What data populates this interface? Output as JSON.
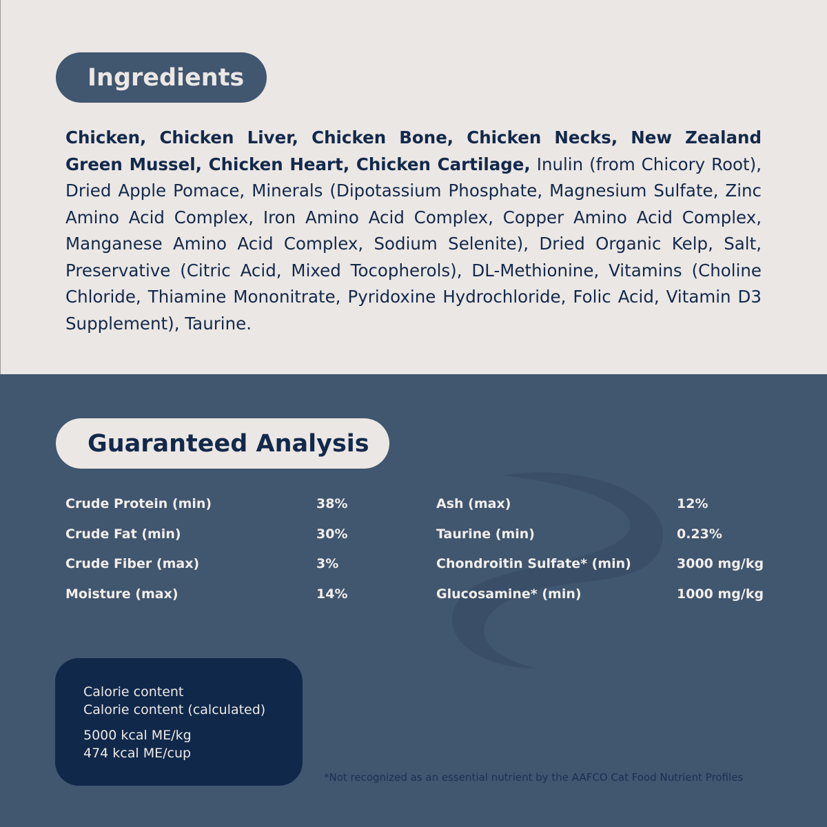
{
  "ingredients": {
    "title": "Ingredients",
    "bold_text": "Chicken, Chicken Liver, Chicken Bone, Chicken Necks, New Zealand Green Mussel, Chicken Heart, Chicken Cartilage,",
    "regular_text": " Inulin (from Chicory Root), Dried Apple Pomace, Minerals (Dipotassium Phosphate, Magnesium Sulfate, Zinc Amino Acid Complex, Iron Amino Acid Complex, Copper Amino Acid Complex, Manganese Amino Acid Complex, Sodium Selenite), Dried Organic Kelp, Salt, Preservative (Citric Acid, Mixed Tocopherols), DL-Methionine, Vitamins (Choline Chloride, Thiamine Mononitrate, Pyridoxine Hydrochloride, Folic Acid, Vitamin D3 Supplement), Taurine."
  },
  "analysis": {
    "title": "Guaranteed Analysis",
    "left": [
      {
        "label": "Crude Protein (min)",
        "value": "38%"
      },
      {
        "label": "Crude Fat (min)",
        "value": "30%"
      },
      {
        "label": "Crude Fiber (max)",
        "value": "3%"
      },
      {
        "label": "Moisture (max)",
        "value": "14%"
      }
    ],
    "right": [
      {
        "label": "Ash (max)",
        "value": "12%"
      },
      {
        "label": "Taurine (min)",
        "value": "0.23%"
      },
      {
        "label": "Chondroitin Sulfate* (min)",
        "value": "3000 mg/kg"
      },
      {
        "label": "Glucosamine* (min)",
        "value": "1000 mg/kg"
      }
    ]
  },
  "calorie": {
    "line1": "Calorie content",
    "line2": "Calorie content (calculated)",
    "value1": "5000 kcal ME/kg",
    "value2": "474 kcal ME/cup"
  },
  "footnote": "*Not recognized as an essential nutrient by the AAFCO Cat Food Nutrient Profiles",
  "colors": {
    "cream": "#ebe7e4",
    "slate": "#41566f",
    "navy": "#10284a",
    "text": "#13294b"
  }
}
